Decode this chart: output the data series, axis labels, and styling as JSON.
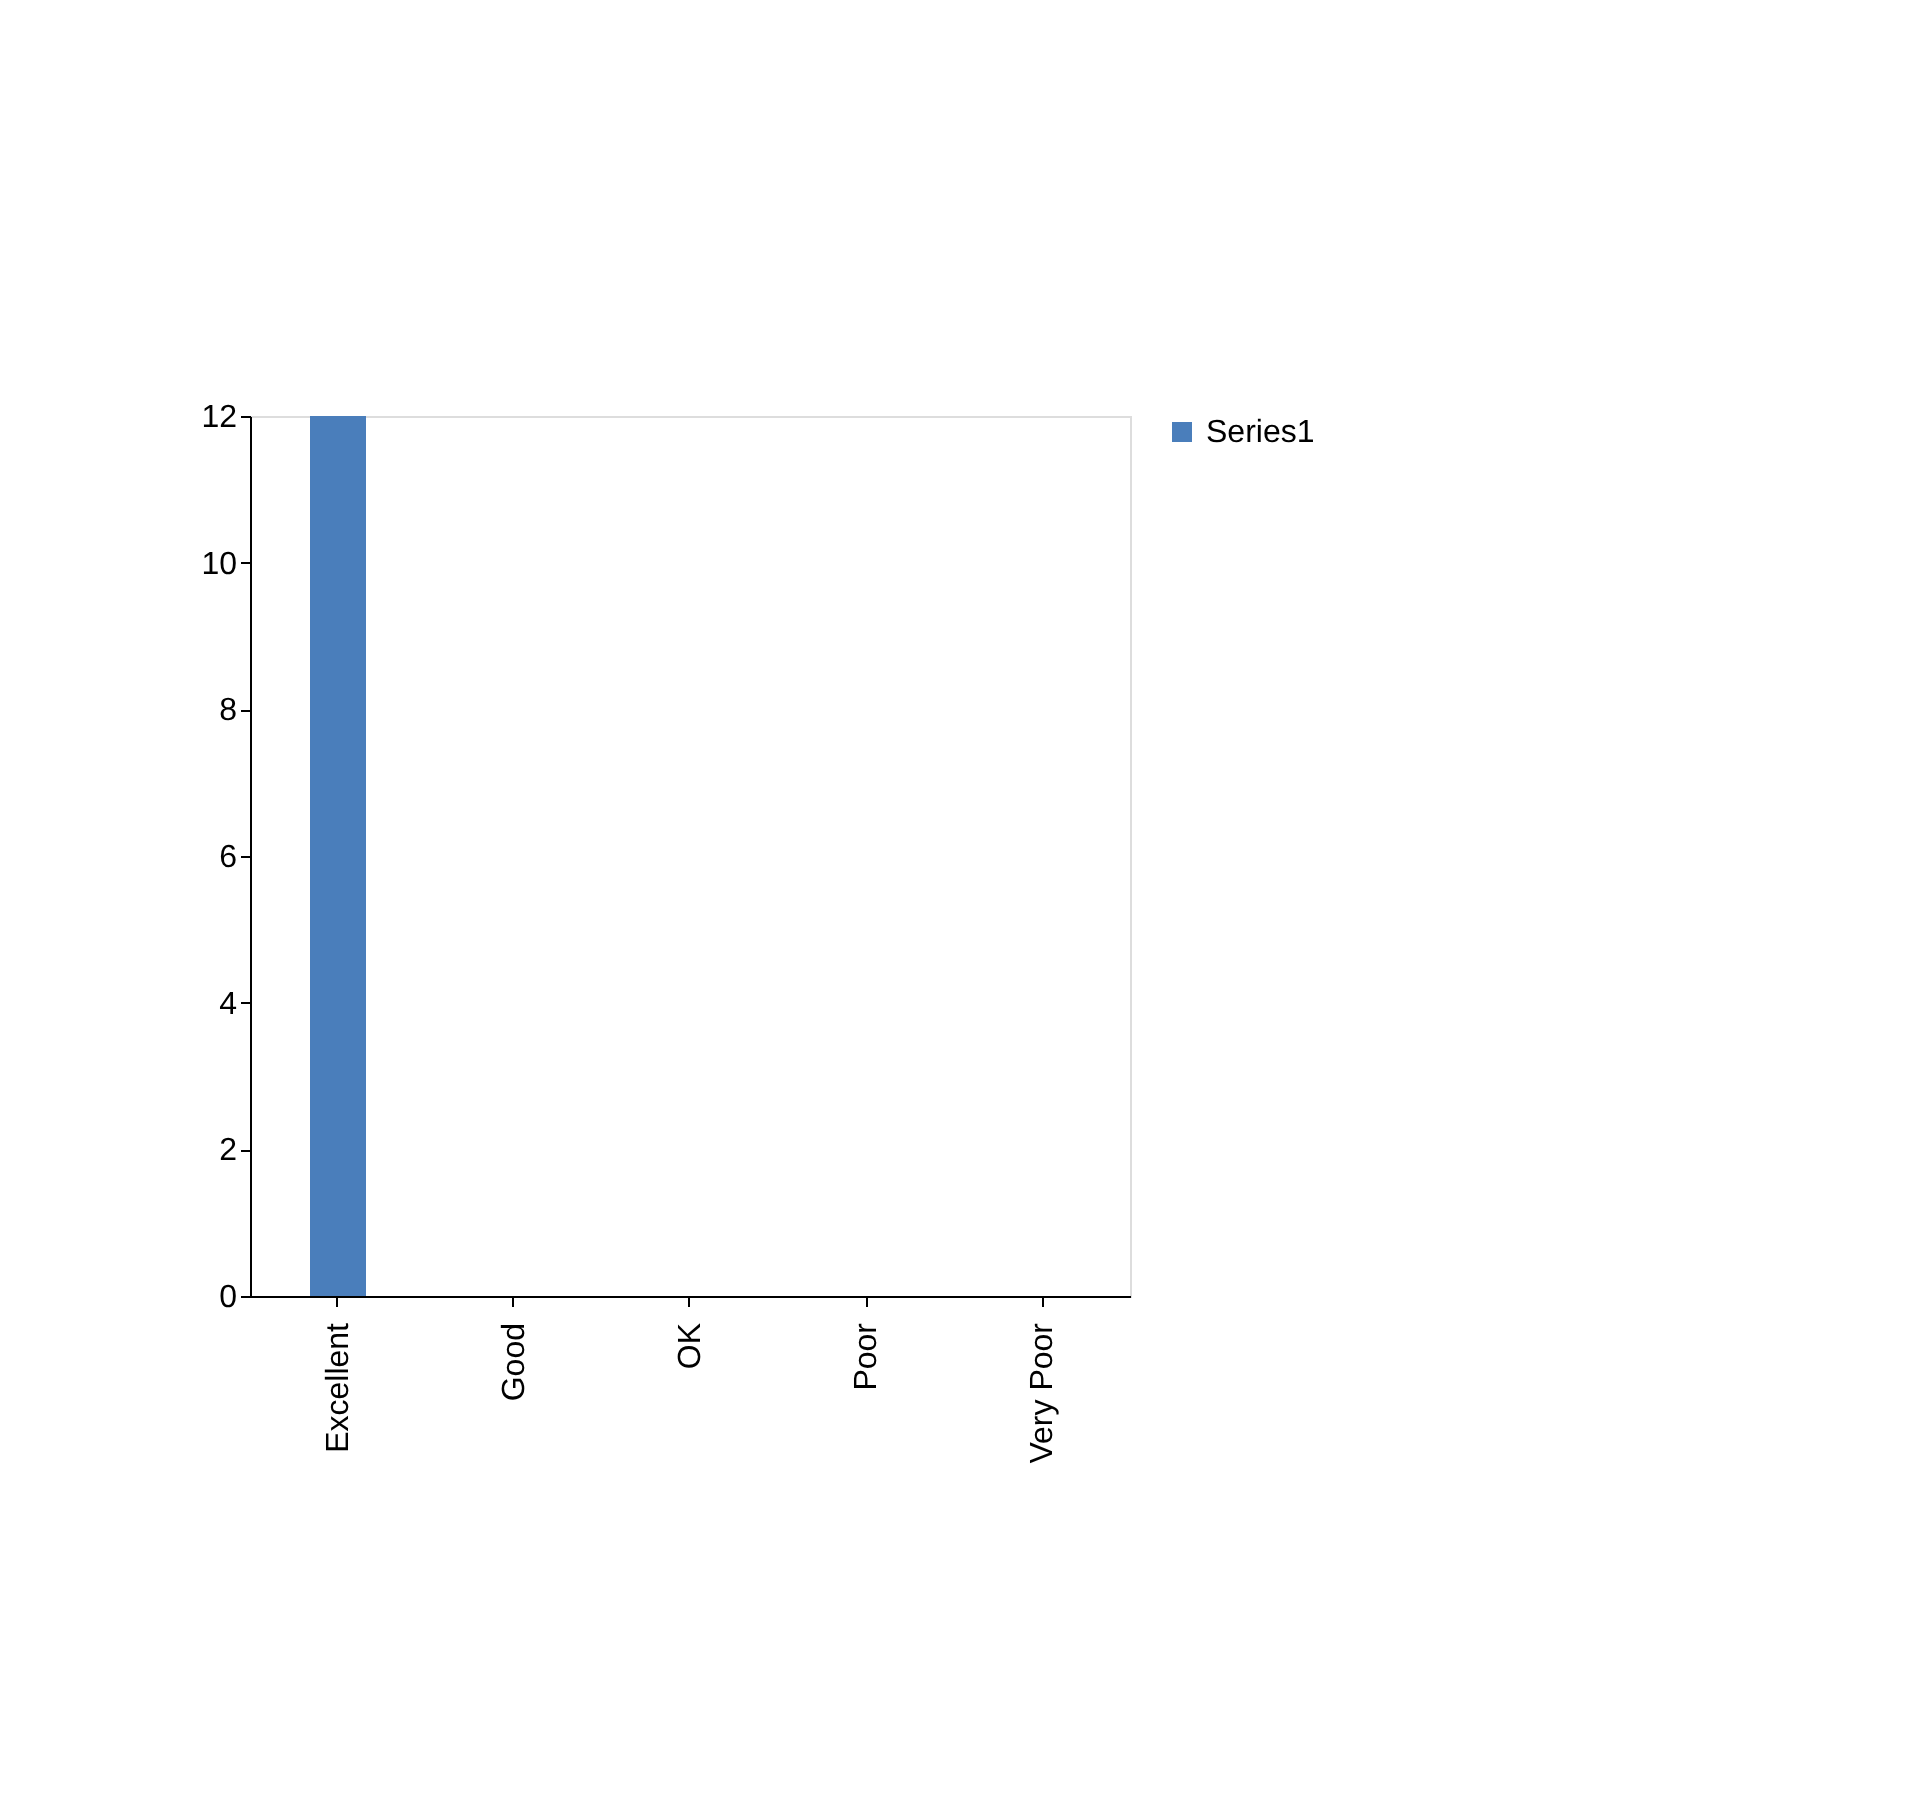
{
  "chart_data": {
    "type": "bar",
    "categories": [
      "Excellent",
      "Good",
      "OK",
      "Poor",
      "Very Poor"
    ],
    "series": [
      {
        "name": "Series1",
        "color": "#4a7ebb",
        "values": [
          12,
          0,
          0,
          0,
          0
        ]
      }
    ],
    "ylim": [
      0,
      12
    ],
    "yticks": [
      0,
      2,
      4,
      6,
      8,
      10,
      12
    ],
    "grid": false,
    "legend": "right"
  }
}
